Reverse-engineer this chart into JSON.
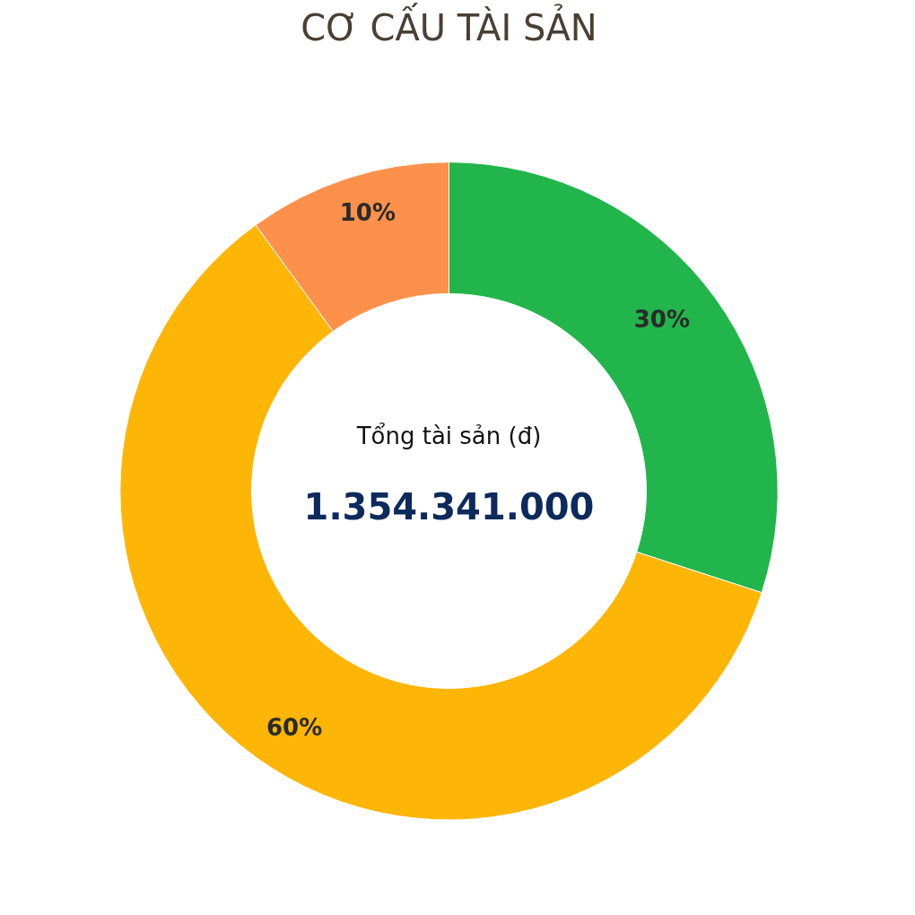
{
  "chart_data": {
    "type": "donut",
    "title": "CƠ CẤU TÀI SẢN",
    "categories": [
      null,
      null,
      null
    ],
    "values": [
      30,
      60,
      10
    ],
    "colors": [
      "#21b54b",
      "#fdb605",
      "#fd914c"
    ],
    "value_labels": [
      "30%",
      "60%",
      "10%"
    ],
    "annotations": [
      "Tổng tài sản (đ)",
      "1.354.341.000"
    ]
  }
}
